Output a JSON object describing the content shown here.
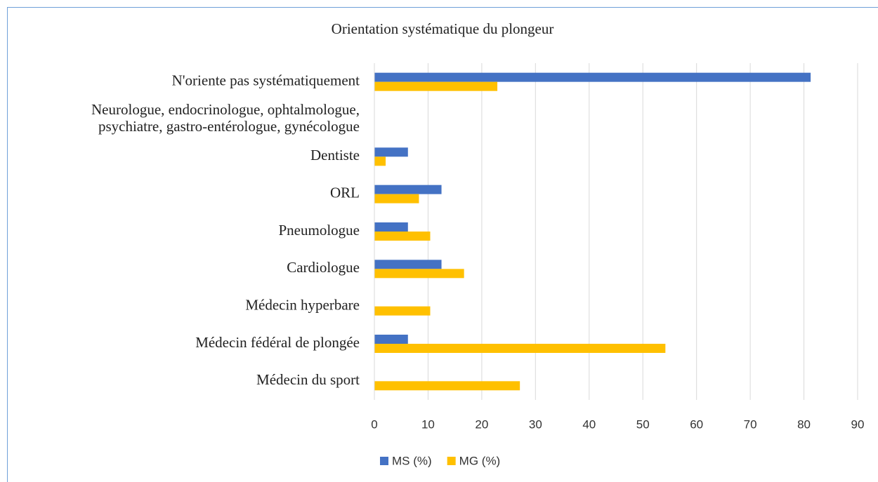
{
  "chart_data": {
    "type": "barh",
    "title": "Orientation systématique du plongeur",
    "categories": [
      "N'oriente pas systématiquement",
      "Neurologue, endocrinologue, ophtalmologue,\npsychiatre, gastro-entérologue, gynécologue",
      "Dentiste",
      "ORL",
      "Pneumologue",
      "Cardiologue",
      "Médecin hyperbare",
      "Médecin fédéral de plongée",
      "Médecin du sport"
    ],
    "series": [
      {
        "name": "MS (%)",
        "color": "#4472c4",
        "values": [
          81.25,
          0,
          6.25,
          12.5,
          6.25,
          12.5,
          0,
          6.25,
          0
        ]
      },
      {
        "name": "MG (%)",
        "color": "#ffc000",
        "values": [
          22.9,
          0,
          2.1,
          8.3,
          10.4,
          16.7,
          10.4,
          54.2,
          27.1
        ]
      }
    ],
    "xlim": [
      0,
      90
    ],
    "xticks": [
      0,
      10,
      20,
      30,
      40,
      50,
      60,
      70,
      80,
      90
    ],
    "grid": true,
    "legend": "bottom"
  }
}
